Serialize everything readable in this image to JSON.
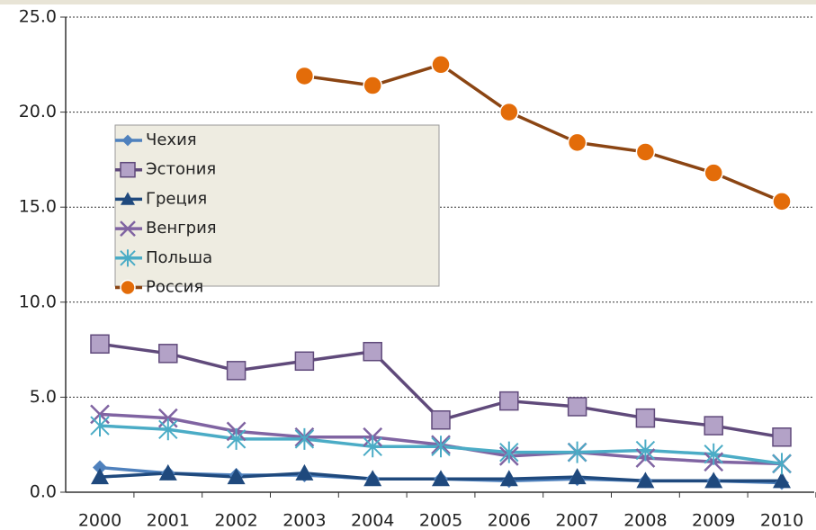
{
  "chart_data": {
    "type": "line",
    "categories": [
      "2000",
      "2001",
      "2002",
      "2003",
      "2004",
      "2005",
      "2006",
      "2007",
      "2008",
      "2009",
      "2010"
    ],
    "series": [
      {
        "name": "Чехия",
        "color": "#4f81bd",
        "marker": "diamond",
        "values": [
          1.3,
          1.0,
          0.9,
          0.9,
          0.7,
          0.7,
          0.6,
          0.7,
          0.6,
          0.6,
          0.5
        ]
      },
      {
        "name": "Эстония",
        "color": "#604a7b",
        "marker_color": "#b3a2c7",
        "marker": "square",
        "values": [
          7.8,
          7.3,
          6.4,
          6.9,
          7.4,
          3.8,
          4.8,
          4.5,
          3.9,
          3.5,
          2.9
        ]
      },
      {
        "name": "Греция",
        "color": "#1f497d",
        "marker": "triangle",
        "values": [
          0.8,
          1.0,
          0.8,
          1.0,
          0.7,
          0.7,
          0.7,
          0.8,
          0.6,
          0.6,
          0.6
        ]
      },
      {
        "name": "Венгрия",
        "color": "#8064a2",
        "marker": "x",
        "values": [
          4.1,
          3.9,
          3.2,
          2.9,
          2.9,
          2.5,
          1.9,
          2.1,
          1.8,
          1.6,
          1.5
        ]
      },
      {
        "name": "Польша",
        "color": "#4bacc6",
        "marker": "star",
        "values": [
          3.5,
          3.3,
          2.8,
          2.8,
          2.4,
          2.4,
          2.1,
          2.1,
          2.2,
          2.0,
          1.5
        ]
      },
      {
        "name": "Россия",
        "color": "#8b4513",
        "marker_color": "#e36c09",
        "marker": "circle",
        "values": [
          null,
          null,
          null,
          21.9,
          21.4,
          22.5,
          20.0,
          18.4,
          17.9,
          16.8,
          15.3
        ]
      }
    ],
    "ylim": [
      0,
      25
    ],
    "yticks": [
      {
        "value": 0,
        "label": "0.0"
      },
      {
        "value": 5,
        "label": "5.0"
      },
      {
        "value": 10,
        "label": "10.0"
      },
      {
        "value": 15,
        "label": "15.0"
      },
      {
        "value": 20,
        "label": "20.0"
      },
      {
        "value": 25,
        "label": "25.0"
      }
    ],
    "grid": true,
    "legend": "upper left"
  }
}
